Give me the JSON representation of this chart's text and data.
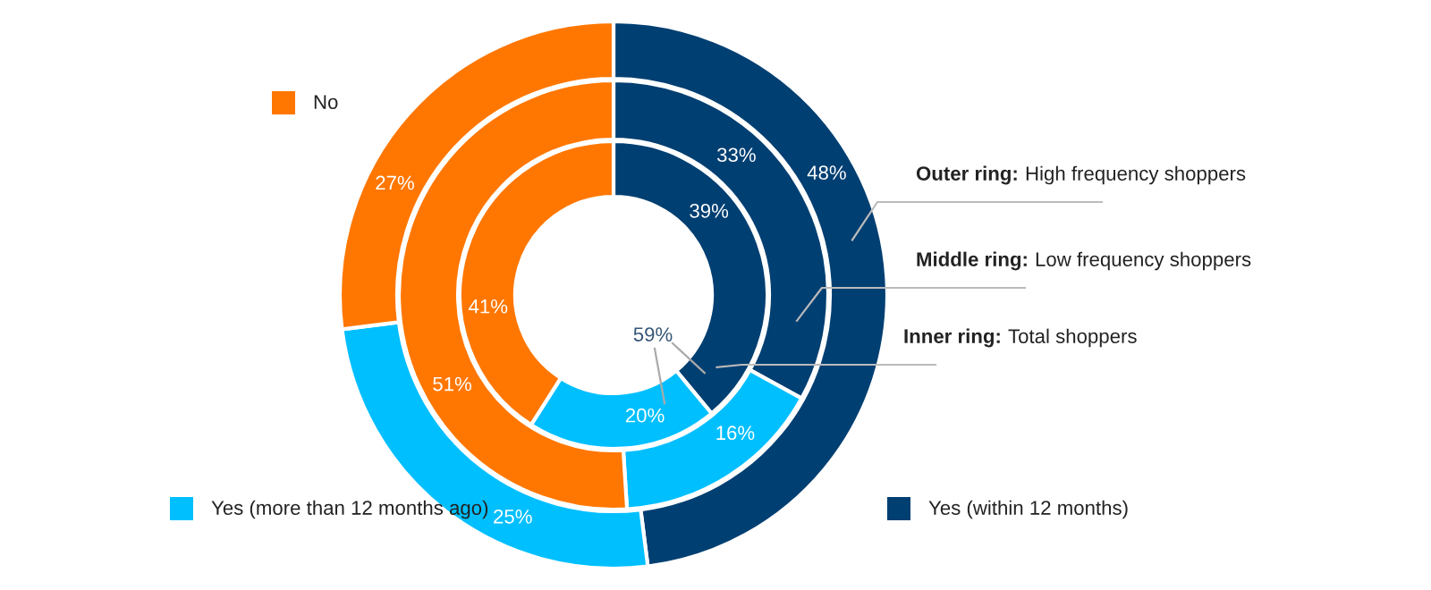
{
  "chart_data": {
    "type": "donut",
    "categories": [
      "Yes (within 12 months)",
      "Yes (more than 12 months ago)",
      "No"
    ],
    "colors": [
      "#003f72",
      "#00bfff",
      "#ff7700"
    ],
    "series": [
      {
        "name": "Outer ring: High frequency shoppers",
        "values": [
          48,
          25,
          27
        ],
        "value_labels": [
          "48%",
          "25%",
          "27%"
        ]
      },
      {
        "name": "Middle ring: Low frequency shoppers",
        "values": [
          33,
          16,
          51
        ],
        "value_labels": [
          "33%",
          "16%",
          "51%"
        ]
      },
      {
        "name": "Inner ring: Total shoppers",
        "values": [
          39,
          20,
          41
        ],
        "value_labels": [
          "39%",
          "20%",
          "41%"
        ]
      }
    ],
    "annotations": [
      "59%"
    ],
    "legend": "bottom right"
  }
}
